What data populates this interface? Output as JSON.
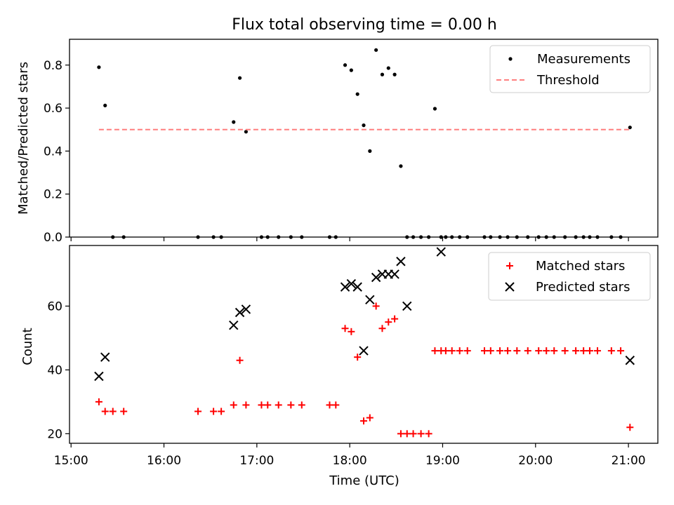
{
  "colors": {
    "measurement": "#000000",
    "threshold": "#ff7f7f",
    "matched": "#ff0000",
    "predicted": "#000000",
    "axes": "#000000",
    "background": "#ffffff"
  },
  "chart_data": [
    {
      "type": "scatter",
      "title": "Flux total observing time = 0.00 h",
      "xlabel": "",
      "ylabel": "Matched/Predicted stars",
      "xlim": [
        "14:59",
        "21:19"
      ],
      "ylim": [
        0.0,
        0.92
      ],
      "yticks": [
        0.0,
        0.2,
        0.4,
        0.6,
        0.8
      ],
      "ytick_labels": [
        "0.0",
        "0.2",
        "0.4",
        "0.6",
        "0.8"
      ],
      "xticks": [
        "15:00",
        "16:00",
        "17:00",
        "18:00",
        "19:00",
        "20:00",
        "21:00"
      ],
      "x_tick_labels_shown": false,
      "grid": false,
      "legend_position": "top-right",
      "series": [
        {
          "name": "Measurements",
          "style": "dot",
          "x": [
            "15:18",
            "15:22",
            "15:27",
            "15:34",
            "16:22",
            "16:32",
            "16:37",
            "16:45",
            "16:49",
            "16:53",
            "17:03",
            "17:07",
            "17:14",
            "17:22",
            "17:29",
            "17:47",
            "17:51",
            "17:57",
            "18:01",
            "18:05",
            "18:09",
            "18:13",
            "18:17",
            "18:21",
            "18:25",
            "18:29",
            "18:33",
            "18:37",
            "18:41",
            "18:46",
            "18:51",
            "18:55",
            "18:59",
            "19:02",
            "19:06",
            "19:11",
            "19:16",
            "19:27",
            "19:31",
            "19:37",
            "19:42",
            "19:48",
            "19:55",
            "20:02",
            "20:07",
            "20:12",
            "20:19",
            "20:26",
            "20:31",
            "20:35",
            "20:40",
            "20:49",
            "20:55",
            "21:01"
          ],
          "y": [
            0.79,
            0.612,
            0.0,
            0.0,
            0.0,
            0.0,
            0.0,
            0.535,
            0.74,
            0.49,
            0.0,
            0.0,
            0.0,
            0.0,
            0.0,
            0.0,
            0.0,
            0.8,
            0.776,
            0.665,
            0.52,
            0.4,
            0.87,
            0.756,
            0.786,
            0.756,
            0.33,
            0.0,
            0.0,
            0.0,
            0.0,
            0.597,
            0.0,
            0.0,
            0.0,
            0.0,
            0.0,
            0.0,
            0.0,
            0.0,
            0.0,
            0.0,
            0.0,
            0.0,
            0.0,
            0.0,
            0.0,
            0.0,
            0.0,
            0.0,
            0.0,
            0.0,
            0.0,
            0.51
          ]
        },
        {
          "name": "Threshold",
          "style": "dashed-line",
          "x": [
            "15:18",
            "21:01"
          ],
          "y": [
            0.5,
            0.5
          ]
        }
      ]
    },
    {
      "type": "scatter",
      "title": "",
      "xlabel": "Time (UTC)",
      "ylabel": "Count",
      "xlim": [
        "14:59",
        "21:19"
      ],
      "ylim": [
        17,
        79
      ],
      "yticks": [
        20,
        40,
        60
      ],
      "ytick_labels": [
        "20",
        "40",
        "60"
      ],
      "xticks": [
        "15:00",
        "16:00",
        "17:00",
        "18:00",
        "19:00",
        "20:00",
        "21:00"
      ],
      "xtick_labels": [
        "15:00",
        "16:00",
        "17:00",
        "18:00",
        "19:00",
        "20:00",
        "21:00"
      ],
      "grid": false,
      "legend_position": "top-right",
      "series": [
        {
          "name": "Matched stars",
          "style": "plus",
          "x": [
            "15:18",
            "15:22",
            "15:27",
            "15:34",
            "16:22",
            "16:32",
            "16:37",
            "16:45",
            "16:49",
            "16:53",
            "17:03",
            "17:07",
            "17:14",
            "17:22",
            "17:29",
            "17:47",
            "17:51",
            "17:57",
            "18:01",
            "18:05",
            "18:09",
            "18:13",
            "18:17",
            "18:21",
            "18:25",
            "18:29",
            "18:33",
            "18:37",
            "18:41",
            "18:46",
            "18:51",
            "18:55",
            "18:59",
            "19:02",
            "19:06",
            "19:11",
            "19:16",
            "19:27",
            "19:31",
            "19:37",
            "19:42",
            "19:48",
            "19:55",
            "20:02",
            "20:07",
            "20:12",
            "20:19",
            "20:26",
            "20:31",
            "20:35",
            "20:40",
            "20:49",
            "20:55",
            "21:01"
          ],
          "y": [
            30,
            27,
            27,
            27,
            27,
            27,
            27,
            29,
            43,
            29,
            29,
            29,
            29,
            29,
            29,
            29,
            29,
            53,
            52,
            44,
            24,
            25,
            60,
            53,
            55,
            56,
            20,
            20,
            20,
            20,
            20,
            46,
            46,
            46,
            46,
            46,
            46,
            46,
            46,
            46,
            46,
            46,
            46,
            46,
            46,
            46,
            46,
            46,
            46,
            46,
            46,
            46,
            46,
            22
          ]
        },
        {
          "name": "Predicted stars",
          "style": "x",
          "x": [
            "15:18",
            "15:22",
            "16:45",
            "16:49",
            "16:53",
            "17:57",
            "18:01",
            "18:05",
            "18:09",
            "18:13",
            "18:17",
            "18:21",
            "18:25",
            "18:29",
            "18:33",
            "18:37",
            "18:59",
            "21:01"
          ],
          "y": [
            38,
            44,
            54,
            58,
            59,
            66,
            67,
            66,
            46,
            62,
            69,
            70,
            70,
            70,
            74,
            60,
            77,
            43
          ]
        }
      ]
    }
  ]
}
